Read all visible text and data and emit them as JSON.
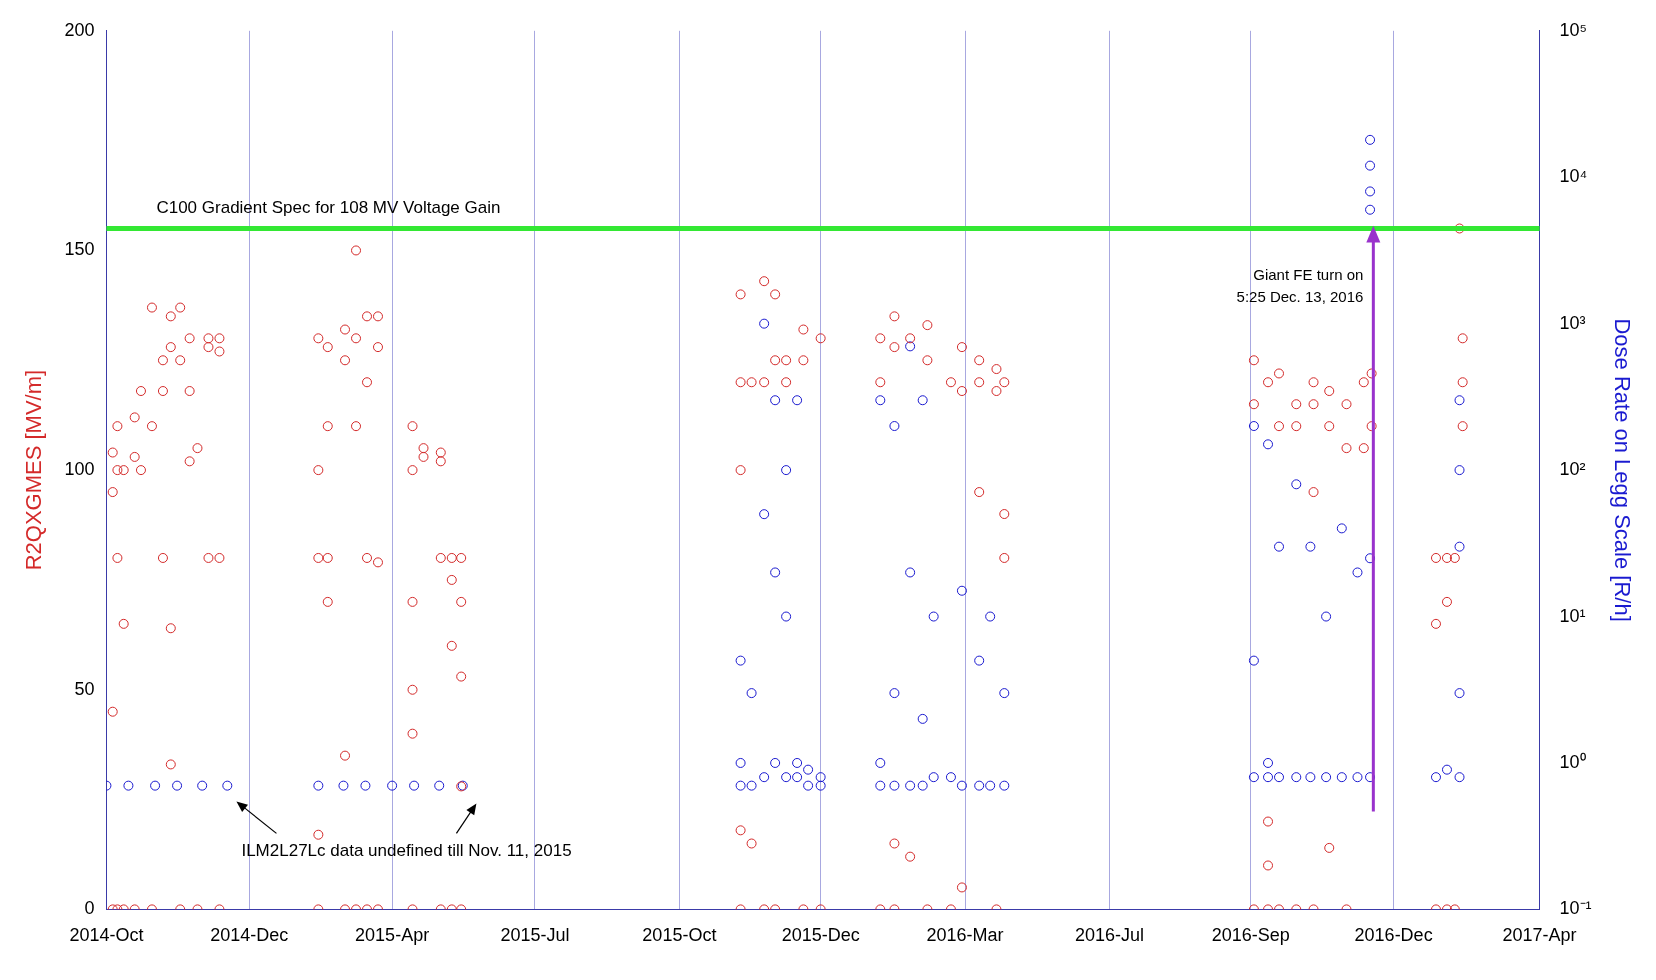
{
  "chart_data": {
    "type": "scatter",
    "ylabel": "R2QXGMES [MV/m]",
    "y2label": "Dose Rate on Legg Scale [R/h]",
    "xlim": [
      "2014-10-01",
      "2017-04-01"
    ],
    "xticks": [
      {
        "value": "2014-10-01",
        "label": "2014-Oct"
      },
      {
        "value": "2014-12-31",
        "label": "2014-Dec"
      },
      {
        "value": "2015-04-01",
        "label": "2015-Apr"
      },
      {
        "value": "2015-07-01",
        "label": "2015-Jul"
      },
      {
        "value": "2015-10-01",
        "label": "2015-Oct"
      },
      {
        "value": "2015-12-30",
        "label": "2015-Dec"
      },
      {
        "value": "2016-03-31",
        "label": "2016-Mar"
      },
      {
        "value": "2016-07-01",
        "label": "2016-Jul"
      },
      {
        "value": "2016-09-29",
        "label": "2016-Sep"
      },
      {
        "value": "2016-12-29",
        "label": "2016-Dec"
      },
      {
        "value": "2017-04-01",
        "label": "2017-Apr"
      }
    ],
    "ylim": [
      0,
      200
    ],
    "yticks": [
      0,
      50,
      100,
      150,
      200
    ],
    "y2lim": [
      0.1,
      100000
    ],
    "y2ticks": [
      {
        "value": 0.1,
        "label": "10⁻¹"
      },
      {
        "value": 1,
        "label": "10⁰"
      },
      {
        "value": 10,
        "label": "10¹"
      },
      {
        "value": 100,
        "label": "10²"
      },
      {
        "value": 1000,
        "label": "10³"
      },
      {
        "value": 10000,
        "label": "10⁴"
      },
      {
        "value": 100000,
        "label": "10⁵"
      }
    ],
    "log": "y2",
    "grid": "x",
    "marker": "circle",
    "legend": false,
    "series": [
      {
        "color": "#d42a2a",
        "x": [
          "2014-10-05",
          "2014-10-05",
          "2014-10-05",
          "2014-10-05",
          "2014-10-08",
          "2014-10-08",
          "2014-10-08",
          "2014-10-08",
          "2014-10-12",
          "2014-10-12",
          "2014-10-12",
          "2014-10-19",
          "2014-10-19",
          "2014-10-19",
          "2014-10-23",
          "2014-10-23",
          "2014-10-30",
          "2014-10-30",
          "2014-10-30",
          "2014-11-06",
          "2014-11-06",
          "2014-11-06",
          "2014-11-11",
          "2014-11-11",
          "2014-11-11",
          "2014-11-11",
          "2014-11-17",
          "2014-11-17",
          "2014-11-17",
          "2014-11-23",
          "2014-11-23",
          "2014-11-23",
          "2014-11-28",
          "2014-11-28",
          "2014-12-05",
          "2014-12-05",
          "2014-12-05",
          "2014-12-12",
          "2014-12-12",
          "2014-12-12",
          "2014-12-12",
          "2015-02-13",
          "2015-02-13",
          "2015-02-13",
          "2015-02-13",
          "2015-02-13",
          "2015-02-19",
          "2015-02-19",
          "2015-02-19",
          "2015-02-19",
          "2015-03-02",
          "2015-03-02",
          "2015-03-02",
          "2015-03-02",
          "2015-03-09",
          "2015-03-09",
          "2015-03-09",
          "2015-03-09",
          "2015-03-16",
          "2015-03-16",
          "2015-03-16",
          "2015-03-16",
          "2015-03-23",
          "2015-03-23",
          "2015-03-23",
          "2015-03-23",
          "2015-04-14",
          "2015-04-14",
          "2015-04-14",
          "2015-04-14",
          "2015-04-14",
          "2015-04-14",
          "2015-04-21",
          "2015-04-21",
          "2015-05-02",
          "2015-05-02",
          "2015-05-02",
          "2015-05-02",
          "2015-05-09",
          "2015-05-09",
          "2015-05-09",
          "2015-05-09",
          "2015-05-15",
          "2015-05-15",
          "2015-05-15",
          "2015-05-15",
          "2015-05-15",
          "2015-11-09",
          "2015-11-09",
          "2015-11-09",
          "2015-11-09",
          "2015-11-09",
          "2015-11-16",
          "2015-11-16",
          "2015-11-24",
          "2015-11-24",
          "2015-11-24",
          "2015-12-01",
          "2015-12-01",
          "2015-12-01",
          "2015-12-08",
          "2015-12-08",
          "2015-12-19",
          "2015-12-19",
          "2015-12-19",
          "2015-12-30",
          "2015-12-30",
          "2016-02-06",
          "2016-02-06",
          "2016-02-06",
          "2016-02-15",
          "2016-02-15",
          "2016-02-15",
          "2016-02-15",
          "2016-02-25",
          "2016-02-25",
          "2016-03-07",
          "2016-03-07",
          "2016-03-07",
          "2016-03-22",
          "2016-03-22",
          "2016-03-29",
          "2016-03-29",
          "2016-03-29",
          "2016-04-09",
          "2016-04-09",
          "2016-04-09",
          "2016-04-20",
          "2016-04-20",
          "2016-04-20",
          "2016-04-25",
          "2016-04-25",
          "2016-04-25",
          "2016-10-01",
          "2016-10-01",
          "2016-10-01",
          "2016-10-10",
          "2016-10-10",
          "2016-10-10",
          "2016-10-10",
          "2016-10-17",
          "2016-10-17",
          "2016-10-17",
          "2016-10-28",
          "2016-10-28",
          "2016-10-28",
          "2016-11-08",
          "2016-11-08",
          "2016-11-08",
          "2016-11-08",
          "2016-11-18",
          "2016-11-18",
          "2016-11-18",
          "2016-11-29",
          "2016-11-29",
          "2016-11-29",
          "2016-12-10",
          "2016-12-10",
          "2016-12-15",
          "2016-12-15",
          "2017-01-25",
          "2017-01-25",
          "2017-01-25",
          "2017-02-01",
          "2017-02-01",
          "2017-02-01",
          "2017-02-06",
          "2017-02-06",
          "2017-02-11",
          "2017-02-11",
          "2017-02-11",
          "2017-02-09"
        ],
        "values": [
          104,
          95,
          45,
          0,
          110,
          100,
          80,
          0,
          65,
          100,
          0,
          112,
          103,
          0,
          118,
          100,
          137,
          110,
          0,
          125,
          118,
          80,
          135,
          128,
          64,
          33,
          137,
          125,
          0,
          130,
          118,
          102,
          105,
          0,
          130,
          128,
          80,
          130,
          127,
          80,
          0,
          130,
          100,
          80,
          0,
          17,
          128,
          110,
          80,
          70,
          132,
          125,
          35,
          0,
          150,
          130,
          110,
          0,
          135,
          120,
          80,
          0,
          135,
          128,
          79,
          0,
          110,
          100,
          70,
          50,
          40,
          0,
          105,
          103,
          104,
          102,
          80,
          0,
          75,
          60,
          80,
          0,
          80,
          70,
          53,
          28,
          0,
          140,
          120,
          100,
          18,
          0,
          120,
          15,
          143,
          120,
          0,
          140,
          125,
          0,
          125,
          120,
          132,
          125,
          0,
          130,
          0,
          130,
          120,
          0,
          135,
          128,
          15,
          0,
          130,
          12,
          133,
          125,
          0,
          120,
          0,
          128,
          118,
          5,
          125,
          120,
          95,
          123,
          118,
          0,
          120,
          90,
          80,
          125,
          115,
          0,
          120,
          20,
          10,
          0,
          122,
          110,
          0,
          115,
          110,
          0,
          120,
          115,
          95,
          0,
          118,
          110,
          14,
          115,
          105,
          0,
          120,
          105,
          122,
          110,
          80,
          65,
          0,
          80,
          70,
          0,
          80,
          0,
          130,
          120,
          110,
          155
        ]
      },
      {
        "color": "#1a1ad0",
        "axis": "y2",
        "x": [
          "2014-10-01",
          "2014-10-15",
          "2014-11-01",
          "2014-11-15",
          "2014-12-01",
          "2014-12-17",
          "2015-02-13",
          "2015-03-01",
          "2015-03-15",
          "2015-04-01",
          "2015-04-15",
          "2015-05-01",
          "2015-05-16",
          "2015-11-09",
          "2015-11-09",
          "2015-11-09",
          "2015-11-16",
          "2015-11-16",
          "2015-11-24",
          "2015-11-24",
          "2015-11-24",
          "2015-12-01",
          "2015-12-01",
          "2015-12-01",
          "2015-12-08",
          "2015-12-08",
          "2015-12-08",
          "2015-12-15",
          "2015-12-15",
          "2015-12-15",
          "2015-12-22",
          "2015-12-22",
          "2015-12-30",
          "2015-12-30",
          "2016-02-06",
          "2016-02-06",
          "2016-02-06",
          "2016-02-15",
          "2016-02-15",
          "2016-02-15",
          "2016-02-25",
          "2016-02-25",
          "2016-02-25",
          "2016-03-04",
          "2016-03-04",
          "2016-03-04",
          "2016-03-11",
          "2016-03-11",
          "2016-03-22",
          "2016-03-29",
          "2016-03-29",
          "2016-04-09",
          "2016-04-09",
          "2016-04-16",
          "2016-04-16",
          "2016-04-25",
          "2016-04-25",
          "2016-10-01",
          "2016-10-01",
          "2016-10-01",
          "2016-10-10",
          "2016-10-10",
          "2016-10-10",
          "2016-10-17",
          "2016-10-17",
          "2016-10-28",
          "2016-10-28",
          "2016-11-06",
          "2016-11-06",
          "2016-11-16",
          "2016-11-16",
          "2016-11-26",
          "2016-11-26",
          "2016-12-06",
          "2016-12-06",
          "2016-12-14",
          "2016-12-14",
          "2016-12-14",
          "2016-12-14",
          "2016-12-14",
          "2016-12-14",
          "2017-01-25",
          "2017-02-01",
          "2017-02-09",
          "2017-02-09",
          "2017-02-09",
          "2017-02-09",
          "2017-02-09"
        ],
        "values": [
          0.7,
          0.7,
          0.7,
          0.7,
          0.7,
          0.7,
          0.7,
          0.7,
          0.7,
          0.7,
          0.7,
          0.7,
          0.7,
          1,
          5,
          0.7,
          3,
          0.7,
          1000,
          50,
          0.8,
          300,
          20,
          1,
          100,
          10,
          0.8,
          300,
          1,
          0.8,
          0.9,
          0.7,
          0.8,
          0.7,
          300,
          1,
          0.7,
          200,
          3,
          0.7,
          700,
          20,
          0.7,
          300,
          2,
          0.7,
          10,
          0.8,
          0.8,
          15,
          0.7,
          5,
          0.7,
          10,
          0.7,
          3,
          0.7,
          200,
          5,
          0.8,
          150,
          1,
          0.8,
          30,
          0.8,
          80,
          0.8,
          30,
          0.8,
          10,
          0.8,
          40,
          0.8,
          20,
          0.8,
          25,
          0.8,
          6000,
          8000,
          12000,
          18000,
          0.8,
          0.9,
          0.8,
          3,
          30,
          100,
          300
        ]
      }
    ],
    "ref_lines": [
      {
        "axis": "y",
        "value": 155,
        "label": "C100 Gradient Spec for 108 MV Voltage Gain",
        "color": "#33e833"
      }
    ],
    "annotations": [
      "ILM2L27Lc data undefined till Nov. 11, 2015",
      "Giant FE turn on\n5:25 Dec. 13, 2016"
    ]
  }
}
